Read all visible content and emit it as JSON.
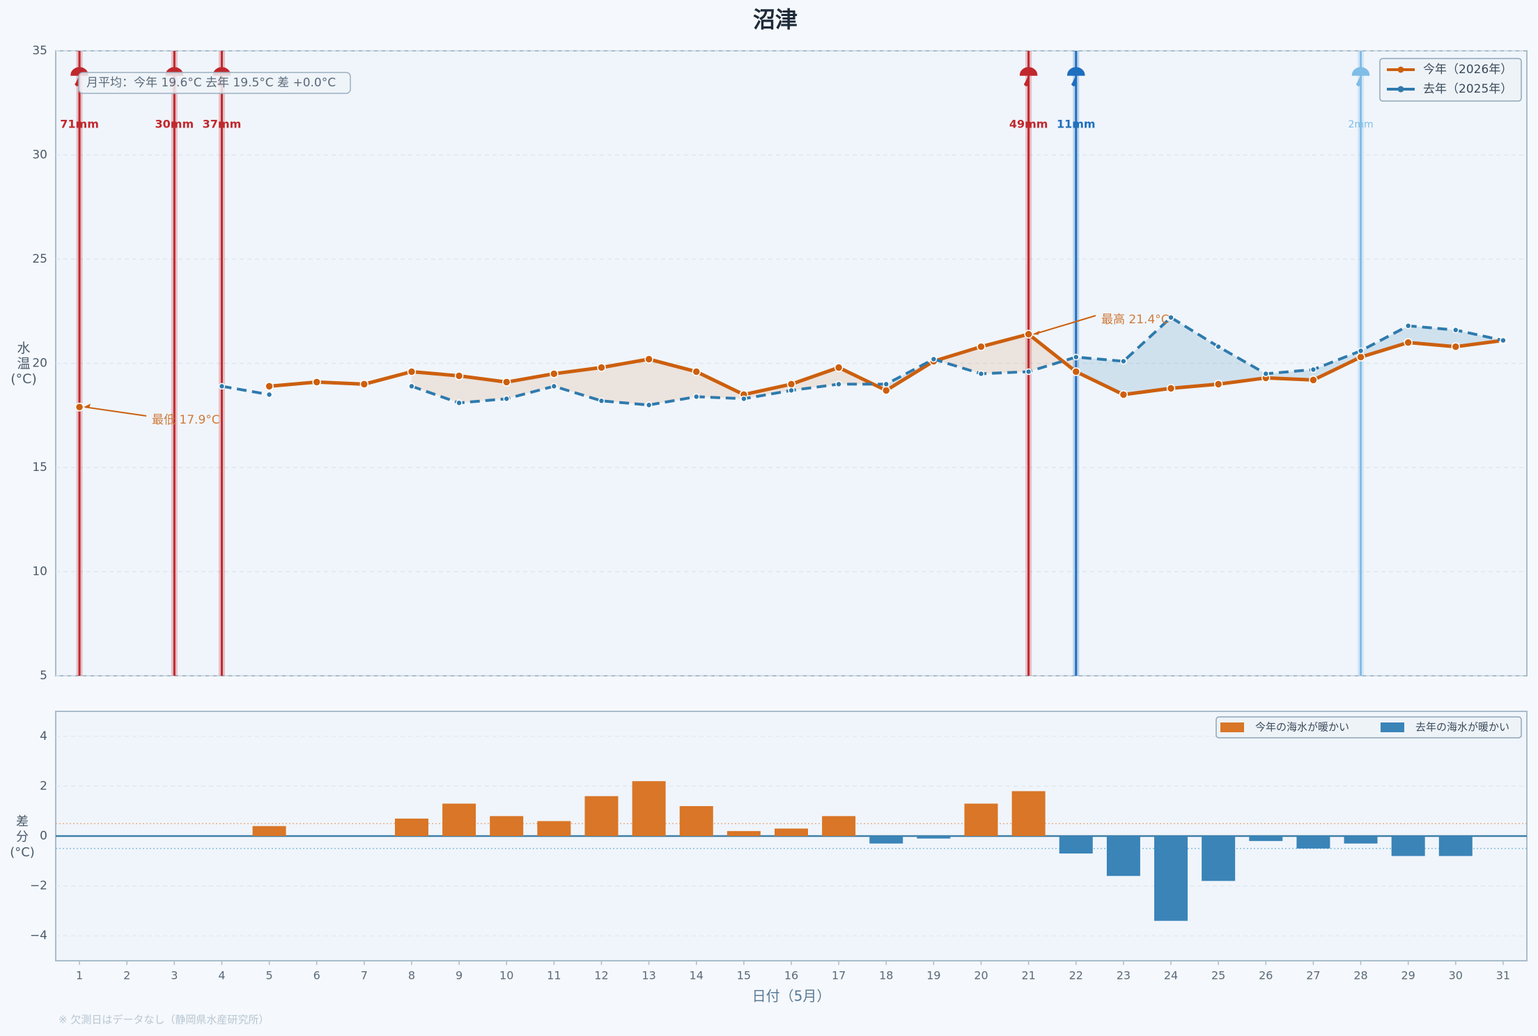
{
  "title": "沼津",
  "note": "※ 欠測日はデータなし（静岡県水産研究所）",
  "chart_data": [
    {
      "type": "line",
      "ylabel": "水\n温\n(°C)",
      "x": [
        1,
        2,
        3,
        4,
        5,
        6,
        7,
        8,
        9,
        10,
        11,
        12,
        13,
        14,
        15,
        16,
        17,
        18,
        19,
        20,
        21,
        22,
        23,
        24,
        25,
        26,
        27,
        28,
        29,
        30,
        31
      ],
      "xlim": [
        0.5,
        31.5
      ],
      "ylim": [
        5,
        35
      ],
      "yticks": [
        5,
        10,
        15,
        20,
        25,
        30,
        35
      ],
      "grid": true,
      "legend": "upper right",
      "series": [
        {
          "name": "今年（2026年）",
          "color": "#cc5f0e",
          "dash": false,
          "values": [
            17.9,
            null,
            null,
            null,
            18.9,
            19.1,
            19.0,
            19.6,
            19.4,
            19.1,
            19.5,
            19.8,
            20.2,
            19.6,
            18.5,
            19.0,
            19.8,
            18.7,
            20.1,
            20.8,
            21.4,
            19.6,
            18.5,
            18.8,
            19.0,
            19.3,
            19.2,
            20.3,
            21.0,
            20.8,
            21.1
          ]
        },
        {
          "name": "去年（2025年）",
          "color": "#2e7aad",
          "dash": true,
          "values": [
            null,
            null,
            null,
            18.9,
            18.5,
            null,
            null,
            18.9,
            18.1,
            18.3,
            18.9,
            18.2,
            18.0,
            18.4,
            18.3,
            18.7,
            19.0,
            19.0,
            20.2,
            19.5,
            19.6,
            20.3,
            20.1,
            22.2,
            20.8,
            19.5,
            19.7,
            20.6,
            21.8,
            21.6,
            21.1
          ]
        }
      ],
      "rain": {
        "days": [
          1,
          3,
          4,
          21,
          22,
          28
        ],
        "values": [
          71,
          30,
          37,
          49,
          11,
          2
        ],
        "value_labels": [
          "71mm",
          "30mm",
          "37mm",
          "49mm",
          "11mm",
          "2mm"
        ],
        "colors": [
          "#c0282d",
          "#c0282d",
          "#c0282d",
          "#c0282d",
          "#1f6fbf",
          "#7fbde6"
        ]
      },
      "annotations": [
        {
          "text": "最低 17.9°C",
          "x": 1,
          "y": 17.9
        },
        {
          "text": "最高 21.4°C",
          "x": 21,
          "y": 21.4
        }
      ],
      "summary": "月平均：今年 19.6°C  去年 19.5°C  差 +0.0°C"
    },
    {
      "type": "bar",
      "ylabel": "差\n分\n(°C)",
      "xlabel": "日付（5月）",
      "x": [
        1,
        2,
        3,
        4,
        5,
        6,
        7,
        8,
        9,
        10,
        11,
        12,
        13,
        14,
        15,
        16,
        17,
        18,
        19,
        20,
        21,
        22,
        23,
        24,
        25,
        26,
        27,
        28,
        29,
        30,
        31
      ],
      "xticks": [
        1,
        2,
        3,
        4,
        5,
        6,
        7,
        8,
        9,
        10,
        11,
        12,
        13,
        14,
        15,
        16,
        17,
        18,
        19,
        20,
        21,
        22,
        23,
        24,
        25,
        26,
        27,
        28,
        29,
        30,
        31
      ],
      "xlim": [
        0.5,
        31.5
      ],
      "ylim": [
        -5,
        5
      ],
      "yticks": [
        {
          "value": -4,
          "label": "−4"
        },
        {
          "value": -2,
          "label": "−2"
        },
        0,
        2,
        4
      ],
      "values": [
        null,
        null,
        null,
        null,
        0.4,
        null,
        null,
        0.7,
        1.3,
        0.8,
        0.6,
        1.6,
        2.2,
        1.2,
        0.2,
        0.3,
        0.8,
        -0.3,
        -0.1,
        1.3,
        1.8,
        -0.7,
        -1.6,
        -3.4,
        -1.8,
        -0.2,
        -0.5,
        -0.3,
        -0.8,
        -0.8,
        0.0
      ],
      "reference_lines": [
        0.5,
        -0.5
      ],
      "legend": "upper right",
      "legend_entries": [
        {
          "name": "今年の海水が暖かい",
          "color": "#d97627"
        },
        {
          "name": "去年の海水が暖かい",
          "color": "#3a84b8"
        }
      ]
    }
  ]
}
